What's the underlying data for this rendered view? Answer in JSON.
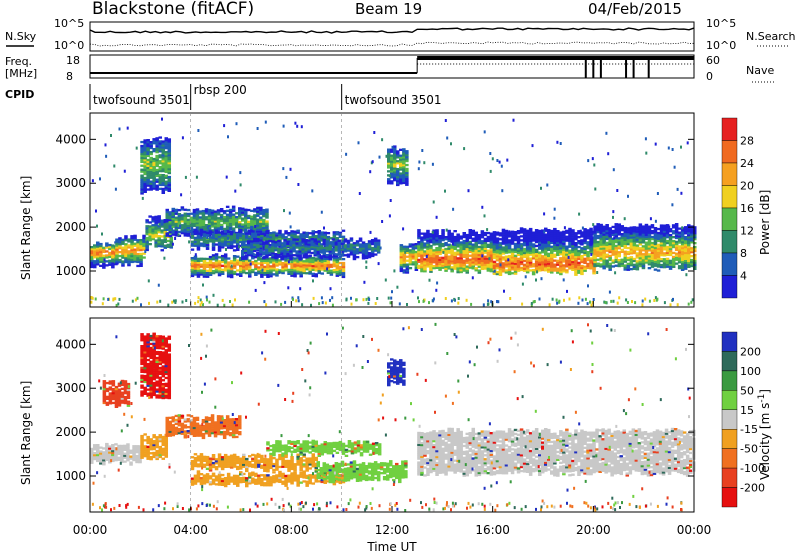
{
  "header": {
    "radar": "Blackstone (fitACF)",
    "beam": "Beam 19",
    "date": "04/Feb/2015"
  },
  "noise_panel": {
    "left_label": "N.Sky",
    "right_label": "N.Search",
    "left_ticks": [
      "10^5",
      "10^0"
    ],
    "right_ticks": [
      "10^5",
      "10^0"
    ]
  },
  "freq_panel": {
    "left_label_line1": "Freq.",
    "left_label_line2": "[MHz]",
    "right_label": "Nave",
    "left_ticks": [
      "18",
      "8"
    ],
    "right_ticks": [
      "60",
      "0"
    ]
  },
  "cpid": {
    "label": "CPID",
    "segments": [
      {
        "name": "twofsound 3501",
        "start_hour": 0
      },
      {
        "name": "rbsp 200",
        "start_hour": 4.0
      },
      {
        "name": "twofsound 3501",
        "start_hour": 10.0
      }
    ]
  },
  "x_axis": {
    "label": "Time UT",
    "ticks": [
      "00:00",
      "04:00",
      "08:00",
      "12:00",
      "16:00",
      "20:00",
      "00:00"
    ]
  },
  "chart_data": [
    {
      "type": "heatmap",
      "name": "power",
      "ylabel": "Slant Range [km]",
      "yticks": [
        1000,
        2000,
        3000,
        4000
      ],
      "ylim": [
        180,
        4600
      ],
      "xlim_hours": [
        0,
        24
      ],
      "colorbar_label": "Power [dB]",
      "colorbar_ticks": [
        "4",
        "8",
        "12",
        "16",
        "20",
        "24",
        "28"
      ],
      "colorbar_colors": [
        "#1f1fd6",
        "#1f5cb8",
        "#2f8a6a",
        "#56b84a",
        "#f0d020",
        "#f5a020",
        "#f06a20",
        "#e62020"
      ],
      "bands": [
        {
          "t0": 0.0,
          "t1": 1.0,
          "r0": 1100,
          "r1": 1600,
          "core": 1400,
          "level": 0.8
        },
        {
          "t0": 1.0,
          "t1": 2.2,
          "r0": 1150,
          "r1": 1750,
          "core": 1450,
          "level": 0.75
        },
        {
          "t0": 2.2,
          "t1": 3.2,
          "r0": 1500,
          "r1": 2200,
          "core": 1800,
          "level": 0.55
        },
        {
          "t0": 2.0,
          "t1": 3.2,
          "r0": 2800,
          "r1": 4000,
          "core": 3400,
          "level": 0.5
        },
        {
          "t0": 3.0,
          "t1": 7.0,
          "r0": 1800,
          "r1": 2400,
          "core": 2100,
          "level": 0.45
        },
        {
          "t0": 4.0,
          "t1": 10.0,
          "r0": 900,
          "r1": 1350,
          "core": 1100,
          "level": 0.8
        },
        {
          "t0": 4.0,
          "t1": 10.0,
          "r0": 1500,
          "r1": 1900,
          "core": 1700,
          "level": 0.35
        },
        {
          "t0": 6.0,
          "t1": 11.5,
          "r0": 1300,
          "r1": 1700,
          "core": 1500,
          "level": 0.3
        },
        {
          "t0": 11.8,
          "t1": 12.6,
          "r0": 3000,
          "r1": 3800,
          "core": 3400,
          "level": 0.5
        },
        {
          "t0": 12.3,
          "t1": 12.9,
          "r0": 1000,
          "r1": 1600,
          "core": 1300,
          "level": 0.75
        },
        {
          "t0": 13.0,
          "t1": 16.0,
          "r0": 1000,
          "r1": 1900,
          "core": 1250,
          "level": 0.85
        },
        {
          "t0": 16.0,
          "t1": 20.0,
          "r0": 950,
          "r1": 1900,
          "core": 1150,
          "level": 0.85
        },
        {
          "t0": 20.0,
          "t1": 24.0,
          "r0": 1050,
          "r1": 2000,
          "core": 1400,
          "level": 0.7
        }
      ]
    },
    {
      "type": "heatmap",
      "name": "velocity",
      "ylabel": "Slant Range [km]",
      "yticks": [
        1000,
        2000,
        3000,
        4000
      ],
      "ylim": [
        180,
        4600
      ],
      "xlim_hours": [
        0,
        24
      ],
      "colorbar_label": "Velocity [m s",
      "colorbar_label_sup": "-1",
      "colorbar_label_end": "]",
      "colorbar_ticks": [
        "200",
        "100",
        "50",
        "15",
        "-15",
        "-50",
        "-100",
        "-200"
      ],
      "colorbar_colors": [
        "#2030c0",
        "#2e6a5a",
        "#3a9a40",
        "#70d040",
        "#c8c8c8",
        "#f0a020",
        "#f07020",
        "#e84020",
        "#e61010"
      ],
      "bands": [
        {
          "t0": 0.0,
          "t1": 2.0,
          "r0": 1300,
          "r1": 1700,
          "color": "#c8c8c8"
        },
        {
          "t0": 0.5,
          "t1": 1.5,
          "r0": 2600,
          "r1": 3100,
          "color": "#e84020"
        },
        {
          "t0": 2.0,
          "t1": 3.2,
          "r0": 2800,
          "r1": 4200,
          "color": "#e61010"
        },
        {
          "t0": 2.0,
          "t1": 3.0,
          "r0": 1400,
          "r1": 1900,
          "color": "#f0a020"
        },
        {
          "t0": 3.0,
          "t1": 6.0,
          "r0": 1900,
          "r1": 2350,
          "color": "#f07020"
        },
        {
          "t0": 4.0,
          "t1": 9.0,
          "r0": 1150,
          "r1": 1450,
          "color": "#f0a020"
        },
        {
          "t0": 4.0,
          "t1": 10.0,
          "r0": 800,
          "r1": 1050,
          "color": "#f0a020"
        },
        {
          "t0": 7.0,
          "t1": 11.5,
          "r0": 1500,
          "r1": 1750,
          "color": "#70d040"
        },
        {
          "t0": 9.0,
          "t1": 12.5,
          "r0": 900,
          "r1": 1300,
          "color": "#70d040"
        },
        {
          "t0": 11.8,
          "t1": 12.5,
          "r0": 3100,
          "r1": 3600,
          "color": "#2030c0"
        },
        {
          "t0": 13.0,
          "t1": 24.0,
          "r0": 1050,
          "r1": 2000,
          "color": "#c8c8c8"
        }
      ]
    }
  ]
}
